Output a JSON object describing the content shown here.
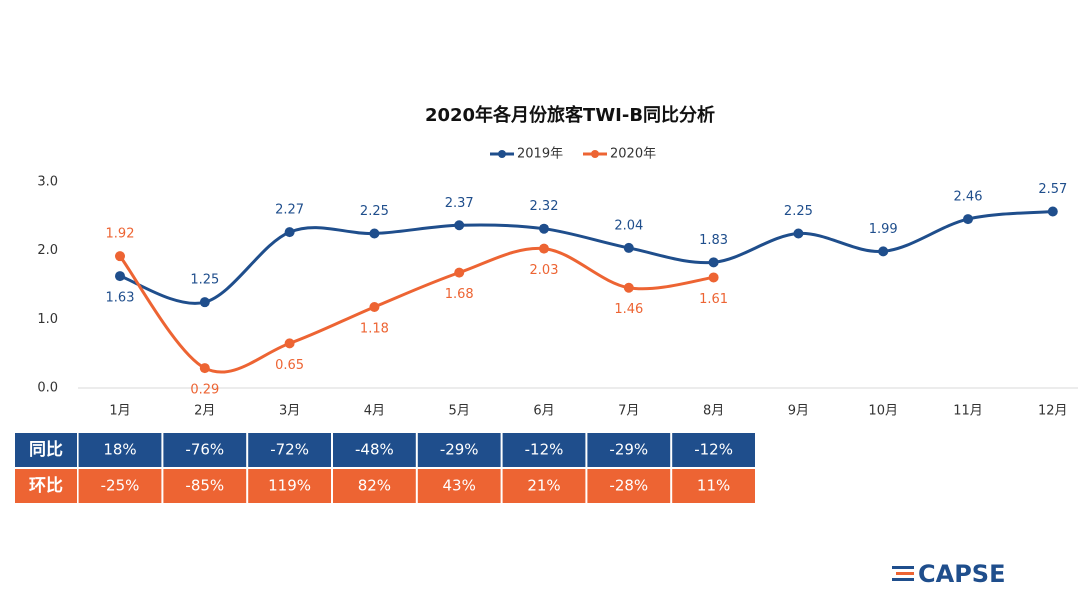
{
  "chart_data": {
    "type": "line",
    "title": "2020年各月份旅客TWI-B同比分析",
    "categories": [
      "1月",
      "2月",
      "3月",
      "4月",
      "5月",
      "6月",
      "7月",
      "8月",
      "9月",
      "10月",
      "11月",
      "12月"
    ],
    "series": [
      {
        "name": "2019年",
        "color": "#1f4e8c",
        "values": [
          1.63,
          1.25,
          2.27,
          2.25,
          2.37,
          2.32,
          2.04,
          1.83,
          2.25,
          1.99,
          2.46,
          2.57
        ]
      },
      {
        "name": "2020年",
        "color": "#ed6433",
        "values": [
          1.92,
          0.29,
          0.65,
          1.18,
          1.68,
          2.03,
          1.46,
          1.61,
          null,
          null,
          null,
          null
        ]
      }
    ],
    "ylim": [
      0,
      3
    ],
    "yticks": [
      {
        "value": 0,
        "label": "0.0"
      },
      {
        "value": 1,
        "label": "1.0"
      },
      {
        "value": 2,
        "label": "2.0"
      },
      {
        "value": 3,
        "label": "3.0"
      }
    ],
    "grid": false,
    "legend": "top"
  },
  "table": {
    "rows": [
      {
        "label": "同比",
        "color": "#1f4e8c",
        "cells": [
          "18%",
          "-76%",
          "-72%",
          "-48%",
          "-29%",
          "-12%",
          "-29%",
          "-12%"
        ]
      },
      {
        "label": "环比",
        "color": "#ed6433",
        "cells": [
          "-25%",
          "-85%",
          "119%",
          "82%",
          "43%",
          "21%",
          "-28%",
          "11%"
        ]
      }
    ]
  },
  "logo": "CAPSE"
}
